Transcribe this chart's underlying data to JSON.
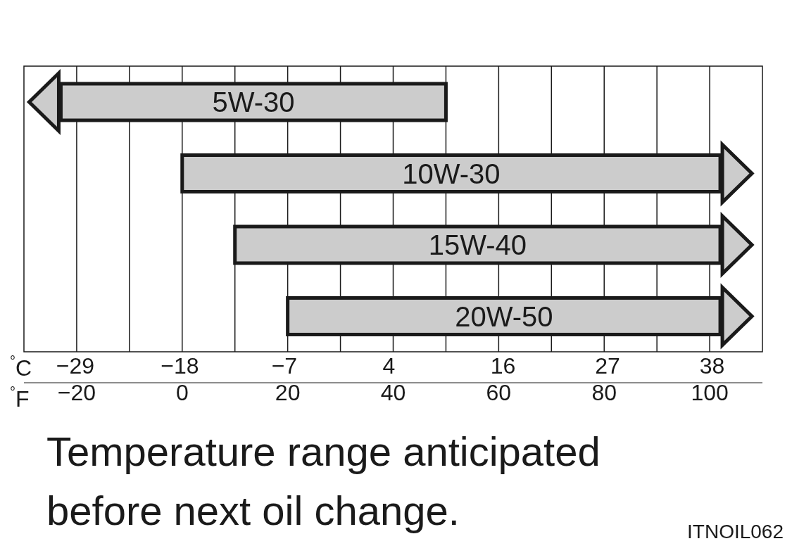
{
  "chart_data": {
    "type": "bar",
    "orientation": "horizontal",
    "categories": [
      "5W-30",
      "10W-30",
      "15W-40",
      "20W-50"
    ],
    "series": [
      {
        "color": "#cccccc",
        "values": [
          73,
          102,
          92,
          82
        ],
        "base": [
          -23,
          0,
          10,
          20
        ]
      }
    ],
    "xlabel": "$^{°}$F",
    "x2label": "$^{°}$C",
    "xlim": [
      -30,
      110
    ],
    "xticks": [
      {
        "value": -20,
        "label": "−20"
      },
      {
        "value": -10,
        "label": null
      },
      0,
      {
        "value": 10,
        "label": null
      },
      20,
      {
        "value": 30,
        "label": null
      },
      40,
      {
        "value": 50,
        "label": null
      },
      60,
      {
        "value": 70,
        "label": null
      },
      80,
      {
        "value": 90,
        "label": null
      },
      100
    ],
    "x2lim": [
      -34.4,
      43.3
    ],
    "x2ticks": [
      {
        "value": -29,
        "label": "−29"
      },
      {
        "value": -18,
        "label": "−18"
      },
      {
        "value": -7,
        "label": "−7"
      },
      4,
      16,
      27,
      38
    ],
    "grid": "x",
    "tick_labels": "x",
    "legend": false,
    "annotations": [
      "Temperature range anticipated before next oil change.",
      "ITNOIL062"
    ]
  }
}
